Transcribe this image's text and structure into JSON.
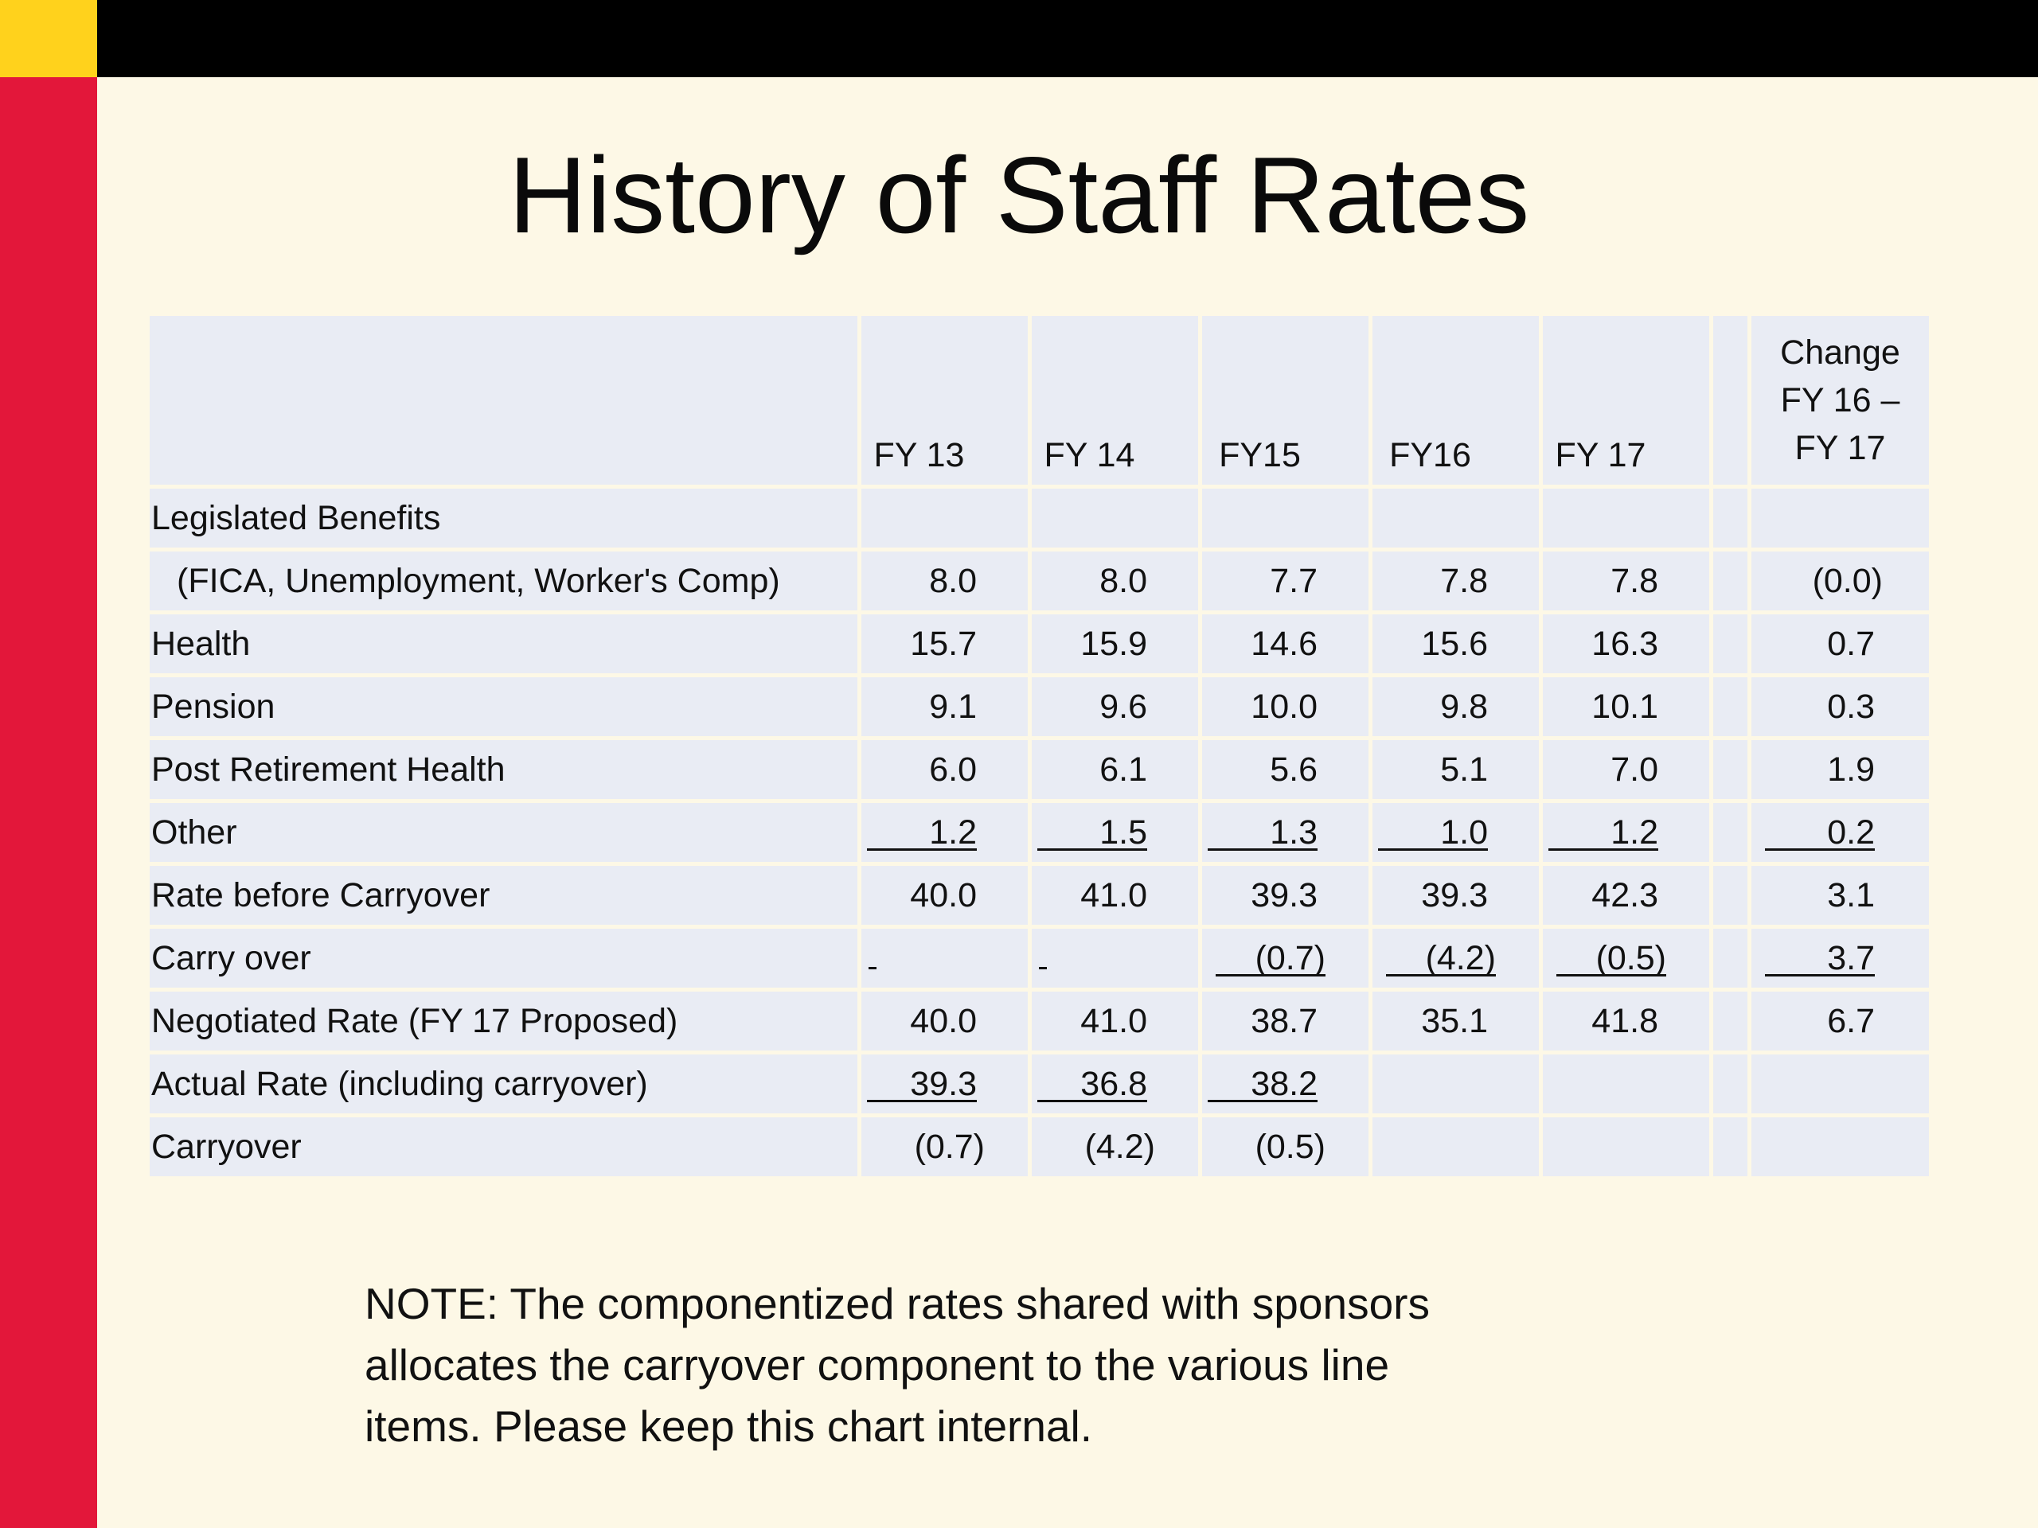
{
  "title": "History of Staff Rates",
  "table": {
    "headers": [
      "FY 13",
      "FY 14",
      "FY15",
      "FY16",
      "FY 17"
    ],
    "change_header": [
      "Change",
      "FY 16 –",
      "FY 17"
    ],
    "rows": {
      "legislated": {
        "label": "Legislated Benefits"
      },
      "fica": {
        "label": "(FICA, Unemployment, Worker's Comp)",
        "values": [
          "8.0",
          "8.0",
          "7.7",
          "7.8",
          "7.8"
        ],
        "change": "(0.0)"
      },
      "health": {
        "label": "Health",
        "values": [
          "15.7",
          "15.9",
          "14.6",
          "15.6",
          "16.3"
        ],
        "change": "0.7"
      },
      "pension": {
        "label": "Pension",
        "values": [
          "9.1",
          "9.6",
          "10.0",
          "9.8",
          "10.1"
        ],
        "change": "0.3"
      },
      "post_retirement": {
        "label": "Post Retirement Health",
        "values": [
          "6.0",
          "6.1",
          "5.6",
          "5.1",
          "7.0"
        ],
        "change": "1.9"
      },
      "other": {
        "label": "Other",
        "values": [
          "1.2",
          "1.5",
          "1.3",
          "1.0",
          "1.2"
        ],
        "change": "0.2"
      },
      "rate_before": {
        "label": "Rate before Carryover",
        "values": [
          "40.0",
          "41.0",
          "39.3",
          "39.3",
          "42.3"
        ],
        "change": "3.1"
      },
      "carry_over": {
        "label": "Carry over",
        "values": [
          "",
          "",
          "(0.7)",
          "(4.2)",
          "(0.5)"
        ],
        "change": "3.7"
      },
      "negotiated": {
        "label": "Negotiated Rate (FY 17 Proposed)",
        "values": [
          "40.0",
          "41.0",
          "38.7",
          "35.1",
          "41.8"
        ],
        "change": "6.7"
      },
      "actual": {
        "label": "Actual Rate (including carryover)",
        "values": [
          "39.3",
          "36.8",
          "38.2",
          "",
          ""
        ],
        "change": ""
      },
      "carryover": {
        "label": "Carryover",
        "values": [
          "(0.7)",
          "(4.2)",
          "(0.5)",
          "",
          ""
        ],
        "change": ""
      }
    }
  },
  "note": [
    "NOTE:  The componentized rates shared with sponsors",
    "allocates the carryover component to the various line",
    "items.  Please keep this chart internal."
  ]
}
